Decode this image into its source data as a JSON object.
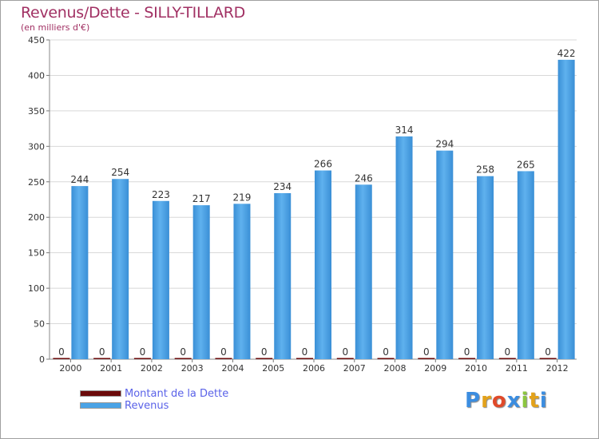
{
  "chart_data": {
    "type": "bar",
    "title": "Revenus/Dette - SILLY-TILLARD",
    "subtitle": "(en milliers d'€)",
    "xlabel": "",
    "ylabel": "",
    "ylim": [
      0,
      450
    ],
    "yticks": [
      0,
      50,
      100,
      150,
      200,
      250,
      300,
      350,
      400,
      450
    ],
    "grid": true,
    "categories": [
      "2000",
      "2001",
      "2002",
      "2003",
      "2004",
      "2005",
      "2006",
      "2007",
      "2008",
      "2009",
      "2010",
      "2011",
      "2012"
    ],
    "series": [
      {
        "name": "Montant de la Dette",
        "color": "#6b0a0a",
        "values": [
          0,
          0,
          0,
          0,
          0,
          0,
          0,
          0,
          0,
          0,
          0,
          0,
          0
        ]
      },
      {
        "name": "Revenus",
        "color": "#4aa3e6",
        "values": [
          244,
          254,
          223,
          217,
          219,
          234,
          266,
          246,
          314,
          294,
          258,
          265,
          422
        ]
      }
    ],
    "legend_placement": "bottom-left"
  },
  "logo": {
    "letters": [
      "P",
      "r",
      "o",
      "x",
      "i",
      "t",
      "i"
    ],
    "colors": [
      "#3b8de0",
      "#e3a21a",
      "#e04a2a",
      "#3b8de0",
      "#8cc63f",
      "#e3a21a",
      "#3b8de0"
    ]
  }
}
